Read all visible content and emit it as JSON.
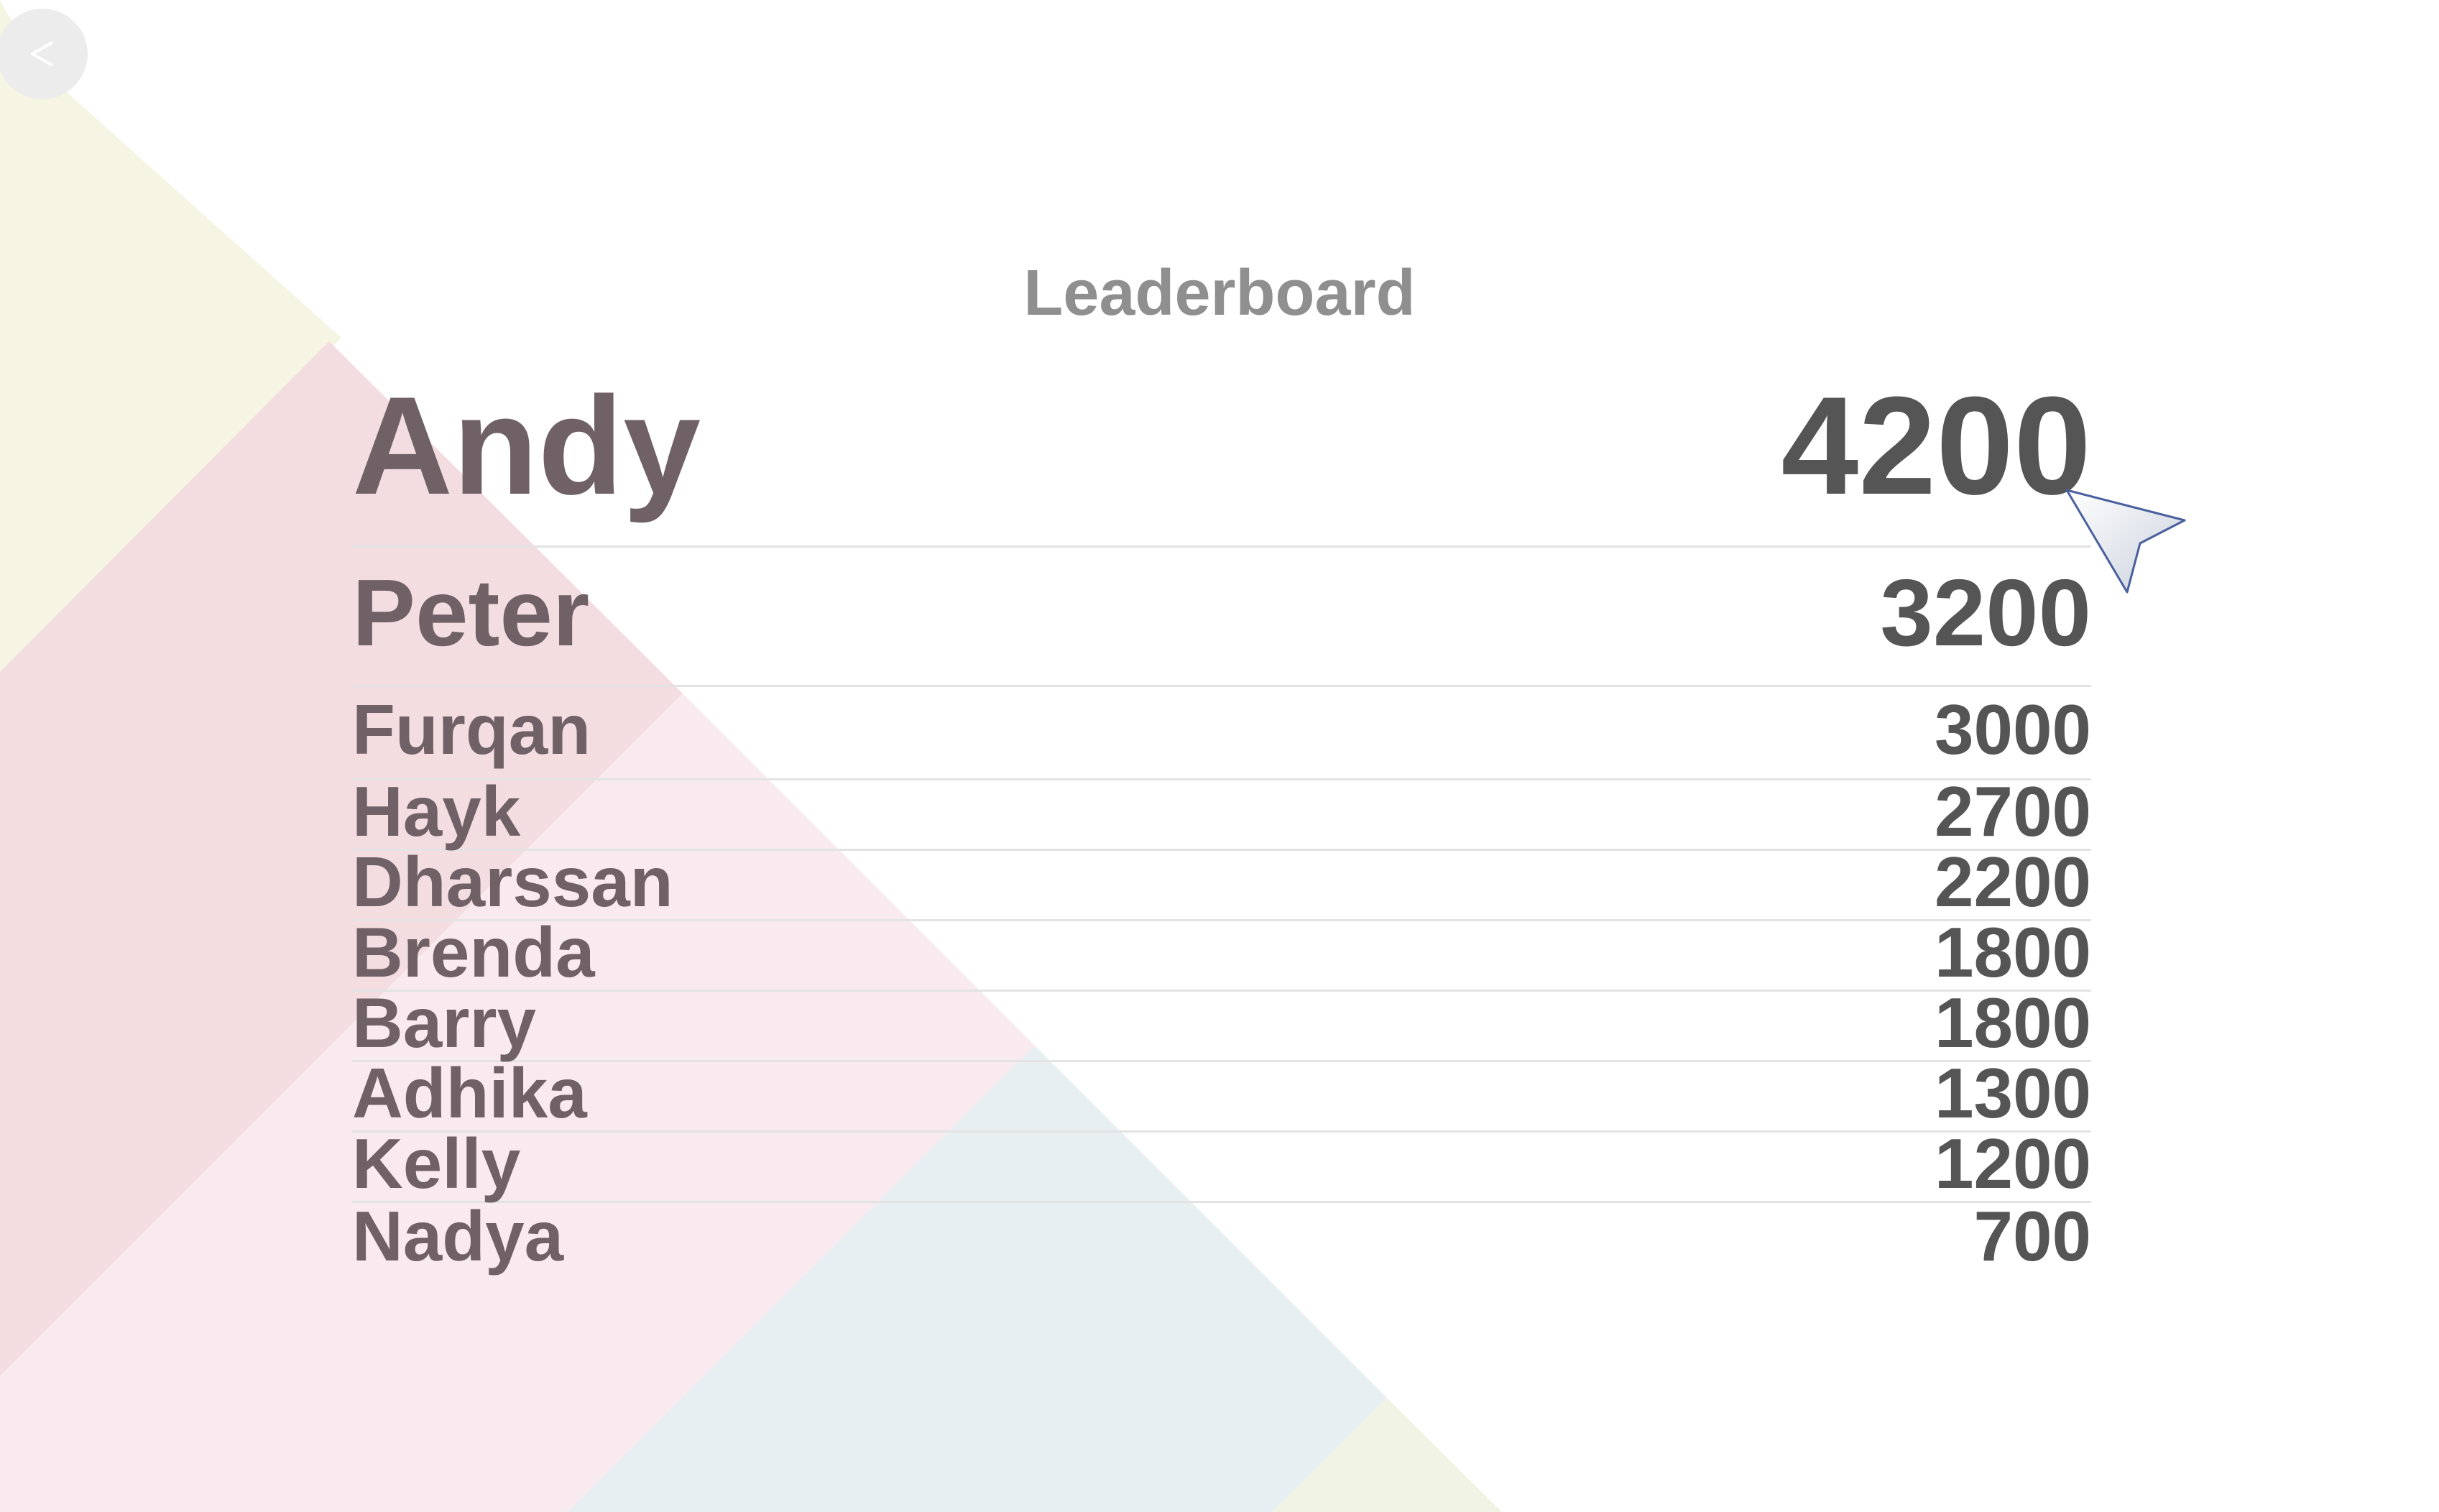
{
  "title": "Leaderboard",
  "back_button": {
    "icon": "chevron-left-icon",
    "glyph": "<"
  },
  "players": [
    {
      "name": "Andy",
      "score": "4200"
    },
    {
      "name": "Peter",
      "score": "3200"
    },
    {
      "name": "Furqan",
      "score": "3000"
    },
    {
      "name": "Hayk",
      "score": "2700"
    },
    {
      "name": "Dharssan",
      "score": "2200"
    },
    {
      "name": "Brenda",
      "score": "1800"
    },
    {
      "name": "Barry",
      "score": "1800"
    },
    {
      "name": "Adhika",
      "score": "1300"
    },
    {
      "name": "Kelly",
      "score": "1200"
    },
    {
      "name": "Nadya",
      "score": "700"
    }
  ],
  "colors": {
    "background": "#ffffff",
    "title": "#8f8f8f",
    "name": "#6f6166",
    "score": "#555555",
    "divider": "#e3e3e3",
    "decor_yellow": "#f6f4e2",
    "decor_pink": "#f3dde1",
    "decor_light_pink": "#f8eaee",
    "decor_blue": "#e8eff2",
    "decor_green": "#f1f4e4"
  },
  "cursor": {
    "icon": "mouse-pointer-icon"
  }
}
